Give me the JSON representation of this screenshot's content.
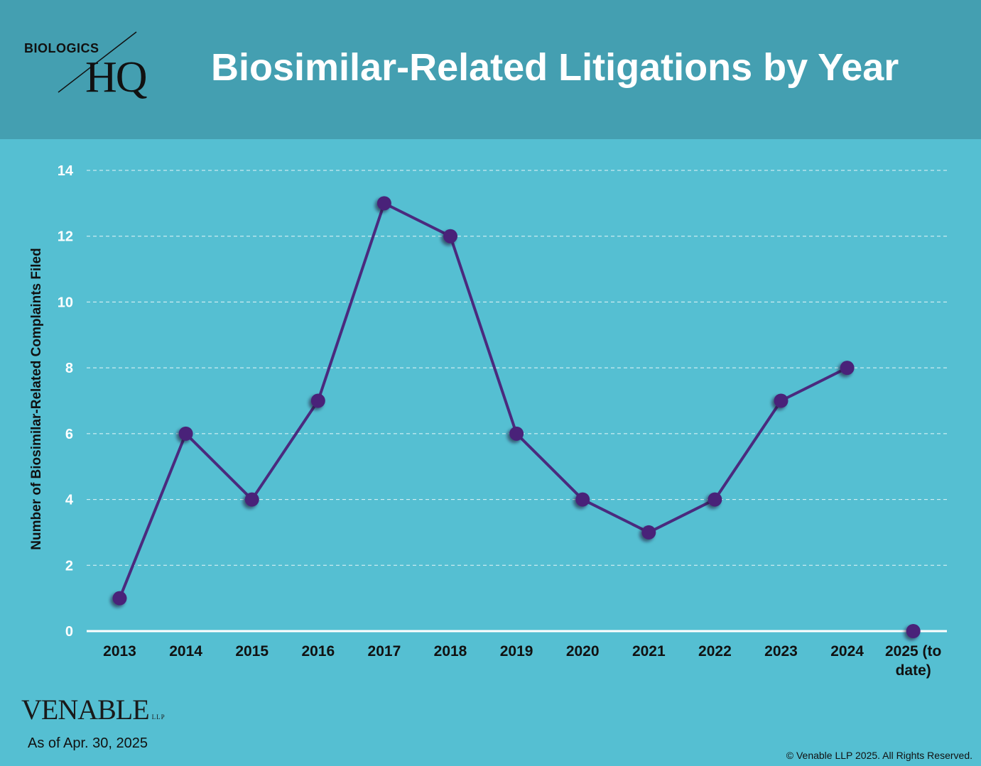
{
  "header": {
    "logo_top": "BIOLOGICS",
    "logo_main": "HQ",
    "title": "Biosimilar-Related Litigations by Year"
  },
  "footer": {
    "brand": "VENABLE",
    "brand_suffix": "LLP",
    "as_of": "As of Apr. 30, 2025",
    "copyright": "© Venable LLP 2025. All Rights Reserved."
  },
  "colors": {
    "header_bg": "#449fb1",
    "plot_bg": "#55bfd2",
    "line": "#4a2a7e",
    "marker": "#4a2279"
  },
  "chart_data": {
    "type": "line",
    "title": "Biosimilar-Related Litigations by Year",
    "ylabel": "Number of Biosimilar-Related Complaints Filed",
    "xlabel": "",
    "categories": [
      "2013",
      "2014",
      "2015",
      "2016",
      "2017",
      "2018",
      "2019",
      "2020",
      "2021",
      "2022",
      "2023",
      "2024",
      "2025 (to date)"
    ],
    "values": [
      1,
      6,
      4,
      7,
      13,
      12,
      6,
      4,
      3,
      4,
      7,
      8,
      0
    ],
    "connected_through": 12,
    "ylim": [
      0,
      14
    ],
    "yticks": [
      0,
      2,
      4,
      6,
      8,
      10,
      12,
      14
    ],
    "grid": "horizontal dashed",
    "legend": "none"
  }
}
